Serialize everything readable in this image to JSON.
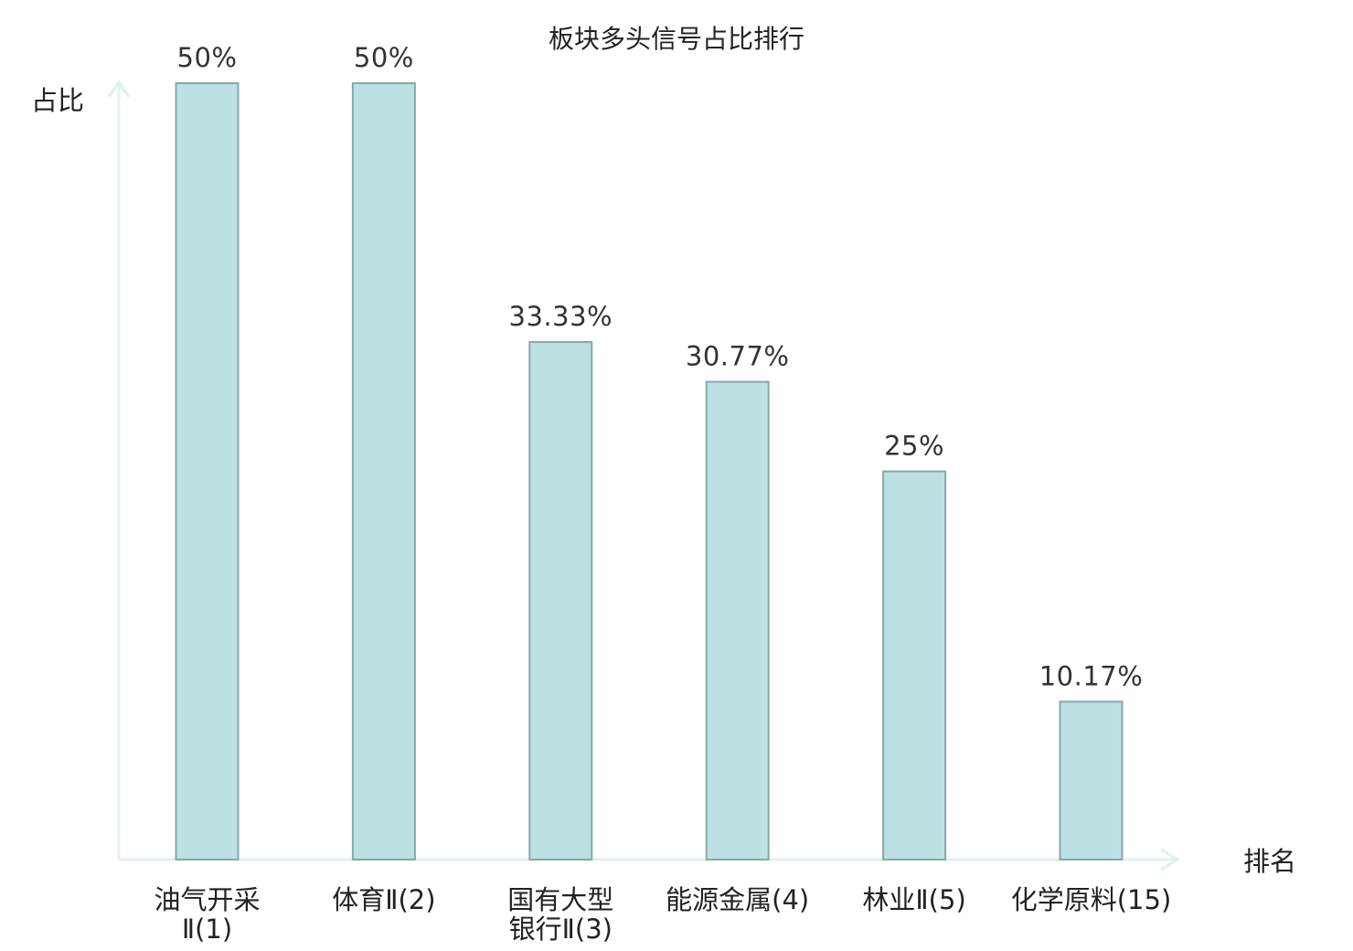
{
  "chart_data": {
    "type": "bar",
    "title": "板块多头信号占比排行",
    "ylabel": "占比",
    "xlabel": "排名",
    "ylim": [
      0,
      50
    ],
    "categories": [
      [
        "油气开采",
        "Ⅱ(1)"
      ],
      [
        "体育Ⅱ(2)"
      ],
      [
        "国有大型",
        "银行Ⅱ(3)"
      ],
      [
        "能源金属(4)"
      ],
      [
        "林业Ⅱ(5)"
      ],
      [
        "化学原料(15)"
      ]
    ],
    "values": [
      50,
      50,
      33.33,
      30.77,
      25,
      10.17
    ],
    "value_labels": [
      "50%",
      "50%",
      "33.33%",
      "30.77%",
      "25%",
      "10.17%"
    ],
    "highlight_index": 5,
    "grid": false,
    "legend": "none"
  },
  "colors": {
    "bar_fill": "#bde1e3",
    "bar_stroke": "#8aa8ab",
    "axis": "#dff1ee",
    "text": "#222222",
    "highlight_text": "#e0141a"
  }
}
